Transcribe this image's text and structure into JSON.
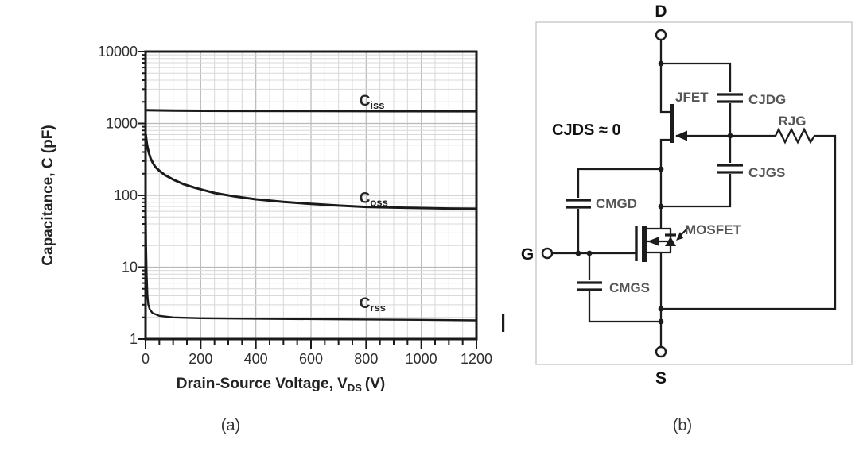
{
  "figure": {
    "caption_a": "(a)",
    "caption_b": "(b)"
  },
  "chart_data": {
    "type": "line",
    "title": "",
    "xlabel": "Drain-Source Voltage, V_DS (V)",
    "xlabel_parts": {
      "main": "Drain-Source Voltage, V",
      "sub": "DS",
      "suffix": "(V)"
    },
    "ylabel": "Capacitance, C (pF)",
    "xlim": [
      0,
      1200
    ],
    "ylim": [
      1,
      10000
    ],
    "yscale": "log",
    "grid": true,
    "legend_position": "inline-labels",
    "x_major_step": 200,
    "x_minor_step": 50,
    "x_tick_labels": [
      "0",
      "200",
      "400",
      "600",
      "800",
      "1000",
      "1200"
    ],
    "y_tick_labels": [
      "1",
      "10",
      "100",
      "1000",
      "10000"
    ],
    "series": [
      {
        "name": "Ciss",
        "label_main": "C",
        "label_sub": "iss",
        "label_v": 775,
        "label_c": 1480,
        "label_dy": -7,
        "points": [
          [
            0,
            1530
          ],
          [
            100,
            1510
          ],
          [
            300,
            1500
          ],
          [
            600,
            1490
          ],
          [
            900,
            1485
          ],
          [
            1200,
            1480
          ]
        ]
      },
      {
        "name": "Coss",
        "label_main": "C",
        "label_sub": "oss",
        "label_v": 775,
        "label_c": 69,
        "label_dy": -5,
        "points": [
          [
            1,
            700
          ],
          [
            3,
            600
          ],
          [
            5,
            520
          ],
          [
            8,
            450
          ],
          [
            12,
            390
          ],
          [
            18,
            330
          ],
          [
            25,
            290
          ],
          [
            35,
            250
          ],
          [
            50,
            220
          ],
          [
            70,
            192
          ],
          [
            100,
            166
          ],
          [
            140,
            142
          ],
          [
            180,
            127
          ],
          [
            250,
            108
          ],
          [
            320,
            97
          ],
          [
            400,
            88
          ],
          [
            500,
            81
          ],
          [
            600,
            76
          ],
          [
            700,
            72
          ],
          [
            800,
            69
          ],
          [
            900,
            67.5
          ],
          [
            1000,
            66.5
          ],
          [
            1100,
            65.5
          ],
          [
            1200,
            65
          ]
        ]
      },
      {
        "name": "Crss",
        "label_main": "C",
        "label_sub": "rss",
        "label_v": 775,
        "label_c": 1.9,
        "label_dy": -14,
        "points": [
          [
            1,
            60
          ],
          [
            2,
            20
          ],
          [
            4,
            8
          ],
          [
            7,
            4
          ],
          [
            10,
            3
          ],
          [
            15,
            2.6
          ],
          [
            25,
            2.3
          ],
          [
            50,
            2.1
          ],
          [
            100,
            2.0
          ],
          [
            200,
            1.95
          ],
          [
            400,
            1.92
          ],
          [
            700,
            1.88
          ],
          [
            1000,
            1.85
          ],
          [
            1200,
            1.82
          ]
        ]
      }
    ]
  },
  "circuit": {
    "terminals": {
      "drain": "D",
      "gate": "G",
      "source": "S"
    },
    "labels": {
      "jfet": "JFET",
      "cjdg": "CJDG",
      "rjg": "RJG",
      "cjgs": "CJGS",
      "cmgd": "CMGD",
      "cmgs": "CMGS",
      "mosfet": "MOSFET",
      "cjds_note": "CJDS ≈ 0"
    }
  },
  "colors": {
    "curve": "#1a1a1a",
    "grid_minor": "#d8d8d8",
    "grid_major": "#b9b9b9",
    "wire": "#1c1c1c",
    "panel_border": "#c9c9c9",
    "component_label": "#555555"
  }
}
